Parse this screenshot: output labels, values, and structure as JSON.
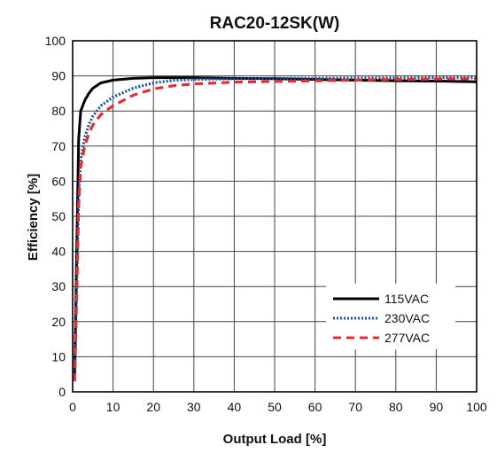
{
  "chart_data": {
    "type": "line",
    "title": "RAC20-12SK(W)",
    "xlabel": "Output Load [%]",
    "ylabel": "Efficiency [%]",
    "xlim": [
      0,
      100
    ],
    "ylim": [
      0,
      100
    ],
    "xticks": [
      "0",
      "10",
      "20",
      "30",
      "40",
      "50",
      "60",
      "70",
      "80",
      "90",
      "100"
    ],
    "yticks": [
      "0",
      "10",
      "20",
      "30",
      "40",
      "50",
      "60",
      "70",
      "80",
      "90",
      "100"
    ],
    "grid": true,
    "legend_position": "bottom-right",
    "series": [
      {
        "name": "115VAC",
        "color": "#000000",
        "style": "solid",
        "points": [
          [
            0.5,
            5
          ],
          [
            1,
            40
          ],
          [
            1.5,
            72
          ],
          [
            2,
            80
          ],
          [
            3,
            83
          ],
          [
            4,
            85
          ],
          [
            5,
            86.5
          ],
          [
            7,
            88
          ],
          [
            10,
            88.8
          ],
          [
            15,
            89.3
          ],
          [
            20,
            89.5
          ],
          [
            30,
            89.5
          ],
          [
            40,
            89.3
          ],
          [
            50,
            89.2
          ],
          [
            60,
            89
          ],
          [
            70,
            88.8
          ],
          [
            80,
            88.6
          ],
          [
            90,
            88.5
          ],
          [
            100,
            88.3
          ]
        ]
      },
      {
        "name": "230VAC",
        "color": "#1a4fa0",
        "style": "dotted",
        "points": [
          [
            0.5,
            3
          ],
          [
            1,
            30
          ],
          [
            1.5,
            55
          ],
          [
            2,
            66
          ],
          [
            3,
            72.5
          ],
          [
            4,
            76
          ],
          [
            5,
            78.5
          ],
          [
            7,
            81.5
          ],
          [
            10,
            84
          ],
          [
            15,
            86.5
          ],
          [
            20,
            88
          ],
          [
            25,
            88.7
          ],
          [
            30,
            89
          ],
          [
            40,
            89.2
          ],
          [
            50,
            89.3
          ],
          [
            60,
            89.3
          ],
          [
            70,
            89.4
          ],
          [
            80,
            89.4
          ],
          [
            90,
            89.5
          ],
          [
            100,
            89.5
          ]
        ]
      },
      {
        "name": "277VAC",
        "color": "#e03030",
        "style": "dashed",
        "points": [
          [
            0.5,
            3
          ],
          [
            1,
            28
          ],
          [
            1.5,
            53
          ],
          [
            2,
            64
          ],
          [
            3,
            70
          ],
          [
            4,
            73.5
          ],
          [
            5,
            76
          ],
          [
            7,
            79
          ],
          [
            10,
            81.5
          ],
          [
            15,
            84.5
          ],
          [
            20,
            86.3
          ],
          [
            25,
            87.2
          ],
          [
            30,
            87.7
          ],
          [
            40,
            88.2
          ],
          [
            50,
            88.4
          ],
          [
            60,
            88.6
          ],
          [
            70,
            88.8
          ],
          [
            80,
            89
          ],
          [
            90,
            89.1
          ],
          [
            100,
            89.2
          ]
        ]
      }
    ]
  }
}
